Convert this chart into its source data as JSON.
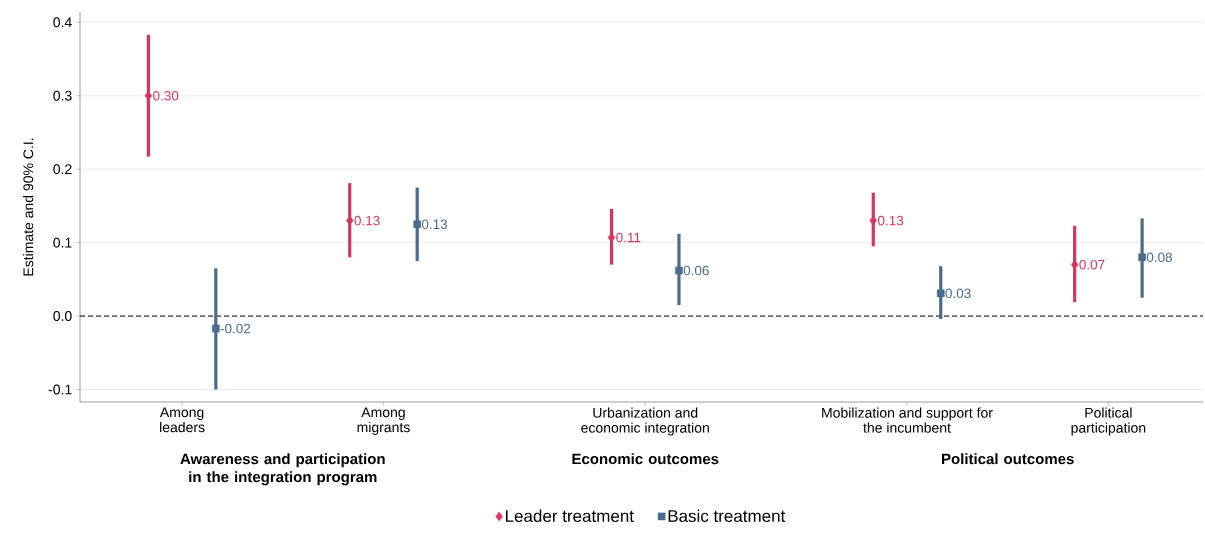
{
  "chart_data": {
    "type": "scatter",
    "ylabel": "Estimate and 90% C.I.",
    "categories": [
      "Among leaders",
      "Among migrants",
      "Urbanization and economic integration",
      "Mobilization and support for the incumbent",
      "Political participation"
    ],
    "series": [
      {
        "name": "Leader treatment",
        "color": "#d6365e",
        "marker": "diamond",
        "values": [
          0.3,
          0.13,
          0.107,
          0.13,
          0.07
        ],
        "errors": [
          [
            0.217,
            0.383
          ],
          [
            0.08,
            0.181
          ],
          [
            0.07,
            0.146
          ],
          [
            0.095,
            0.168
          ],
          [
            0.019,
            0.123
          ]
        ],
        "value_labels": [
          "0.30",
          "0.13",
          "0.11",
          "0.13",
          "0.07"
        ]
      },
      {
        "name": "Basic treatment",
        "color": "#4a6b8a",
        "marker": "square",
        "values": [
          -0.017,
          0.125,
          0.062,
          0.031,
          0.08
        ],
        "errors": [
          [
            -0.1,
            0.065
          ],
          [
            0.075,
            0.175
          ],
          [
            0.015,
            0.112
          ],
          [
            -0.004,
            0.068
          ],
          [
            0.025,
            0.133
          ]
        ],
        "value_labels": [
          "-0.02",
          "0.13",
          "0.06",
          "0.03",
          "0.08"
        ]
      }
    ],
    "ylim": [
      -0.117,
      0.414
    ],
    "yticks": [
      {
        "value": -0.1,
        "label": "-0.1"
      },
      {
        "value": 0,
        "label": "0.0"
      },
      {
        "value": 0.1,
        "label": "0.1"
      },
      {
        "value": 0.2,
        "label": "0.2"
      },
      {
        "value": 0.3,
        "label": "0.3"
      },
      {
        "value": 0.4,
        "label": "0.4"
      }
    ],
    "grid": "y",
    "legend": "bottom",
    "ref_lines": [
      {
        "axis": "y",
        "value": 0,
        "color": "#000000",
        "line_style": "dashed"
      }
    ],
    "annotations": [
      "**Awareness and participation in the integration program**",
      "**Economic outcomes**",
      "**Political outcomes**"
    ]
  }
}
